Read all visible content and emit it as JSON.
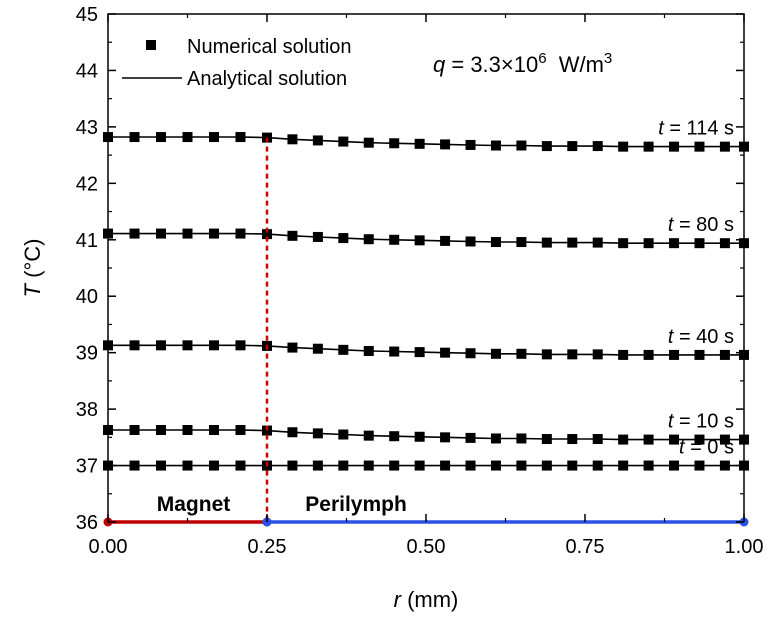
{
  "chart_data": {
    "type": "line",
    "xlabel_var": "r",
    "xlabel_unit": " (mm)",
    "ylabel_var": "T",
    "ylabel_unit": " (°C)",
    "xlim": [
      0,
      1.0
    ],
    "ylim": [
      36,
      45
    ],
    "xticks": [
      "0.00",
      "0.25",
      "0.50",
      "0.75",
      "1.00"
    ],
    "yticks": [
      "36",
      "37",
      "38",
      "39",
      "40",
      "41",
      "42",
      "43",
      "44",
      "45"
    ],
    "legend": {
      "placement": "top-left",
      "entries": [
        "Numerical solution",
        "Analytical solution"
      ]
    },
    "annotation": {
      "q_var": "q",
      "eq": " = 3.3×10",
      "exp": "6",
      "unit": "W/m",
      "unit_exp": "3"
    },
    "boundary": {
      "x": 0.25,
      "color": "#cc0000"
    },
    "regions": [
      {
        "name": "Magnet",
        "from": 0.0,
        "to": 0.25,
        "color": "#c00000"
      },
      {
        "name": "Perilymph",
        "from": 0.25,
        "to": 1.0,
        "color": "#2b50e8"
      }
    ],
    "x": [
      0.0,
      0.0417,
      0.0833,
      0.125,
      0.1667,
      0.2083,
      0.25,
      0.29,
      0.33,
      0.37,
      0.41,
      0.45,
      0.49,
      0.53,
      0.57,
      0.61,
      0.65,
      0.69,
      0.73,
      0.77,
      0.81,
      0.85,
      0.89,
      0.93,
      0.97,
      1.0
    ],
    "series": [
      {
        "name": "t = 114 s",
        "t_var": "t",
        "t_rest": " = 114 s",
        "values": [
          42.82,
          42.82,
          42.82,
          42.82,
          42.82,
          42.82,
          42.81,
          42.78,
          42.76,
          42.74,
          42.72,
          42.71,
          42.7,
          42.69,
          42.68,
          42.67,
          42.67,
          42.66,
          42.66,
          42.66,
          42.65,
          42.65,
          42.65,
          42.65,
          42.65,
          42.65
        ]
      },
      {
        "name": "t = 80 s",
        "t_var": "t",
        "t_rest": " = 80 s",
        "values": [
          41.11,
          41.11,
          41.11,
          41.11,
          41.11,
          41.11,
          41.1,
          41.07,
          41.05,
          41.03,
          41.01,
          41.0,
          40.99,
          40.98,
          40.97,
          40.96,
          40.96,
          40.95,
          40.95,
          40.95,
          40.94,
          40.94,
          40.94,
          40.94,
          40.94,
          40.94
        ]
      },
      {
        "name": "t = 40 s",
        "t_var": "t",
        "t_rest": " = 40 s",
        "values": [
          39.13,
          39.13,
          39.13,
          39.13,
          39.13,
          39.13,
          39.12,
          39.09,
          39.07,
          39.05,
          39.03,
          39.02,
          39.01,
          39.0,
          38.99,
          38.98,
          38.98,
          38.97,
          38.97,
          38.97,
          38.96,
          38.96,
          38.96,
          38.96,
          38.96,
          38.96
        ]
      },
      {
        "name": "t = 10 s",
        "t_var": "t",
        "t_rest": " = 10 s",
        "values": [
          37.63,
          37.63,
          37.63,
          37.63,
          37.63,
          37.63,
          37.62,
          37.59,
          37.57,
          37.55,
          37.53,
          37.52,
          37.51,
          37.5,
          37.49,
          37.48,
          37.48,
          37.47,
          37.47,
          37.47,
          37.46,
          37.46,
          37.46,
          37.46,
          37.46,
          37.46
        ]
      },
      {
        "name": "t = 0 s",
        "t_var": "t",
        "t_rest": " = 0 s",
        "values": [
          37.0,
          37.0,
          37.0,
          37.0,
          37.0,
          37.0,
          37.0,
          37.0,
          37.0,
          37.0,
          37.0,
          37.0,
          37.0,
          37.0,
          37.0,
          37.0,
          37.0,
          37.0,
          37.0,
          37.0,
          37.0,
          37.0,
          37.0,
          37.0,
          37.0,
          37.0
        ]
      }
    ]
  }
}
